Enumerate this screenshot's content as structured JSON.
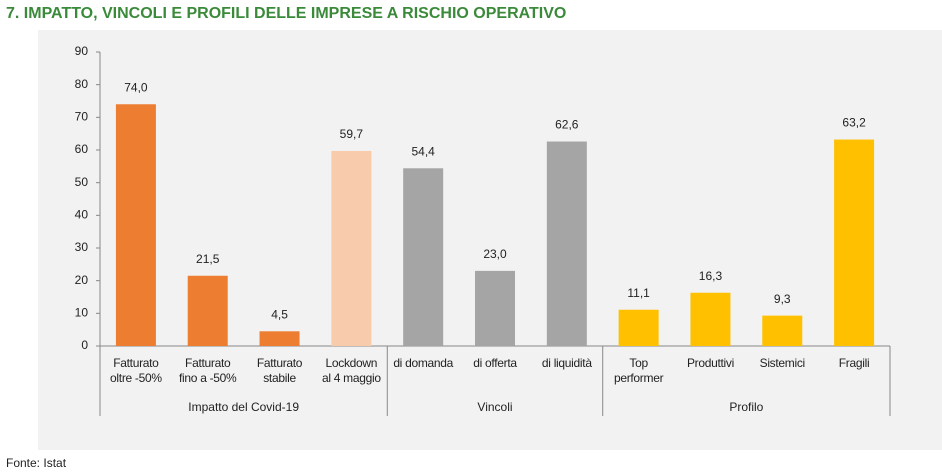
{
  "chart_data": {
    "type": "bar",
    "title": "7. IMPATTO, VINCOLI E PROFILI DELLE IMPRESE A RISCHIO OPERATIVO",
    "source": "Fonte: Istat",
    "ylim": [
      0,
      90
    ],
    "yticks": [
      0,
      10,
      20,
      30,
      40,
      50,
      60,
      70,
      80,
      90
    ],
    "grid": false,
    "groups": [
      {
        "name": "Impatto del Covid-19",
        "categories": [
          "Fatturato\noltre -50%",
          "Fatturato\nfino a -50%",
          "Fatturato\nstabile",
          "Lockdown\nal 4 maggio"
        ],
        "values": [
          74.0,
          21.5,
          4.5,
          59.7
        ],
        "value_labels": [
          "74,0",
          "21,5",
          "4,5",
          "59,7"
        ],
        "colors": [
          "#ed7d31",
          "#ed7d31",
          "#ed7d31",
          "#f8cbad"
        ]
      },
      {
        "name": "Vincoli",
        "categories": [
          "di domanda",
          "di offerta",
          "di liquidità"
        ],
        "values": [
          54.4,
          23.0,
          62.6
        ],
        "value_labels": [
          "54,4",
          "23,0",
          "62,6"
        ],
        "colors": [
          "#a5a5a5",
          "#a5a5a5",
          "#a5a5a5"
        ]
      },
      {
        "name": "Profilo",
        "categories": [
          "Top\nperformer",
          "Produttivi",
          "Sistemici",
          "Fragili"
        ],
        "values": [
          11.1,
          16.3,
          9.3,
          63.2
        ],
        "value_labels": [
          "11,1",
          "16,3",
          "9,3",
          "63,2"
        ],
        "colors": [
          "#ffc000",
          "#ffc000",
          "#ffc000",
          "#ffc000"
        ]
      }
    ]
  }
}
